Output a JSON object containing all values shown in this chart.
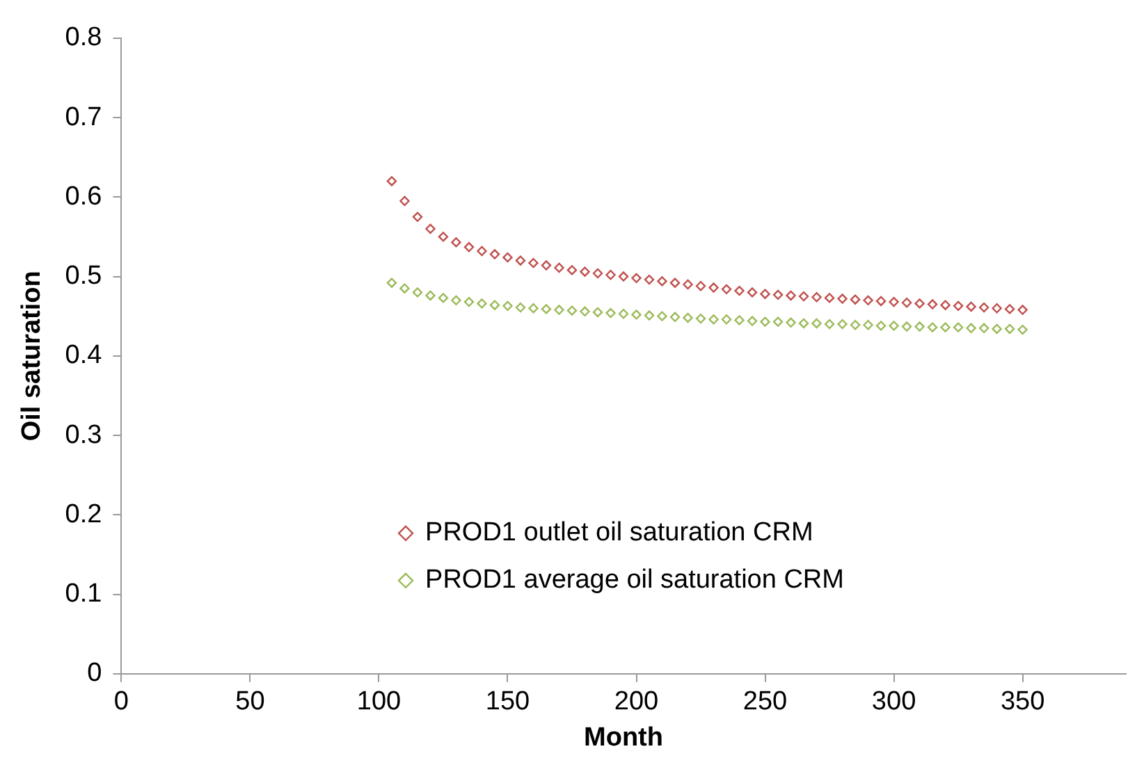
{
  "chart_data": {
    "type": "scatter",
    "xlabel": "Month",
    "ylabel": "Oil saturation",
    "xlim": [
      0,
      390
    ],
    "xticks": [
      0,
      50,
      100,
      150,
      200,
      250,
      300,
      350
    ],
    "ylim": [
      0,
      0.8
    ],
    "yticks": [
      0,
      0.1,
      0.2,
      0.3,
      0.4,
      0.5,
      0.6,
      0.7,
      0.8
    ],
    "grid": false,
    "legend": "bottom",
    "marker": "diamond",
    "x": [
      105,
      110,
      115,
      120,
      125,
      130,
      135,
      140,
      145,
      150,
      155,
      160,
      165,
      170,
      175,
      180,
      185,
      190,
      195,
      200,
      205,
      210,
      215,
      220,
      225,
      230,
      235,
      240,
      245,
      250,
      255,
      260,
      265,
      270,
      275,
      280,
      285,
      290,
      295,
      300,
      305,
      310,
      315,
      320,
      325,
      330,
      335,
      340,
      345,
      350
    ],
    "series": [
      {
        "name": "PROD1 outlet oil saturation CRM",
        "color": "#c0504d",
        "values": [
          0.62,
          0.595,
          0.575,
          0.56,
          0.55,
          0.543,
          0.537,
          0.532,
          0.528,
          0.524,
          0.52,
          0.517,
          0.514,
          0.511,
          0.508,
          0.506,
          0.504,
          0.502,
          0.5,
          0.498,
          0.496,
          0.494,
          0.492,
          0.49,
          0.488,
          0.486,
          0.484,
          0.482,
          0.48,
          0.478,
          0.477,
          0.476,
          0.475,
          0.474,
          0.473,
          0.472,
          0.471,
          0.47,
          0.469,
          0.468,
          0.467,
          0.466,
          0.465,
          0.464,
          0.463,
          0.462,
          0.461,
          0.46,
          0.459,
          0.458
        ]
      },
      {
        "name": "PROD1 average oil saturation CRM",
        "color": "#9bbb59",
        "values": [
          0.492,
          0.485,
          0.48,
          0.476,
          0.473,
          0.47,
          0.468,
          0.466,
          0.464,
          0.463,
          0.461,
          0.46,
          0.459,
          0.458,
          0.457,
          0.456,
          0.455,
          0.454,
          0.453,
          0.452,
          0.451,
          0.45,
          0.449,
          0.448,
          0.447,
          0.446,
          0.446,
          0.445,
          0.444,
          0.443,
          0.443,
          0.442,
          0.441,
          0.441,
          0.44,
          0.44,
          0.439,
          0.439,
          0.438,
          0.438,
          0.437,
          0.437,
          0.436,
          0.436,
          0.436,
          0.435,
          0.435,
          0.434,
          0.434,
          0.433
        ]
      }
    ]
  }
}
